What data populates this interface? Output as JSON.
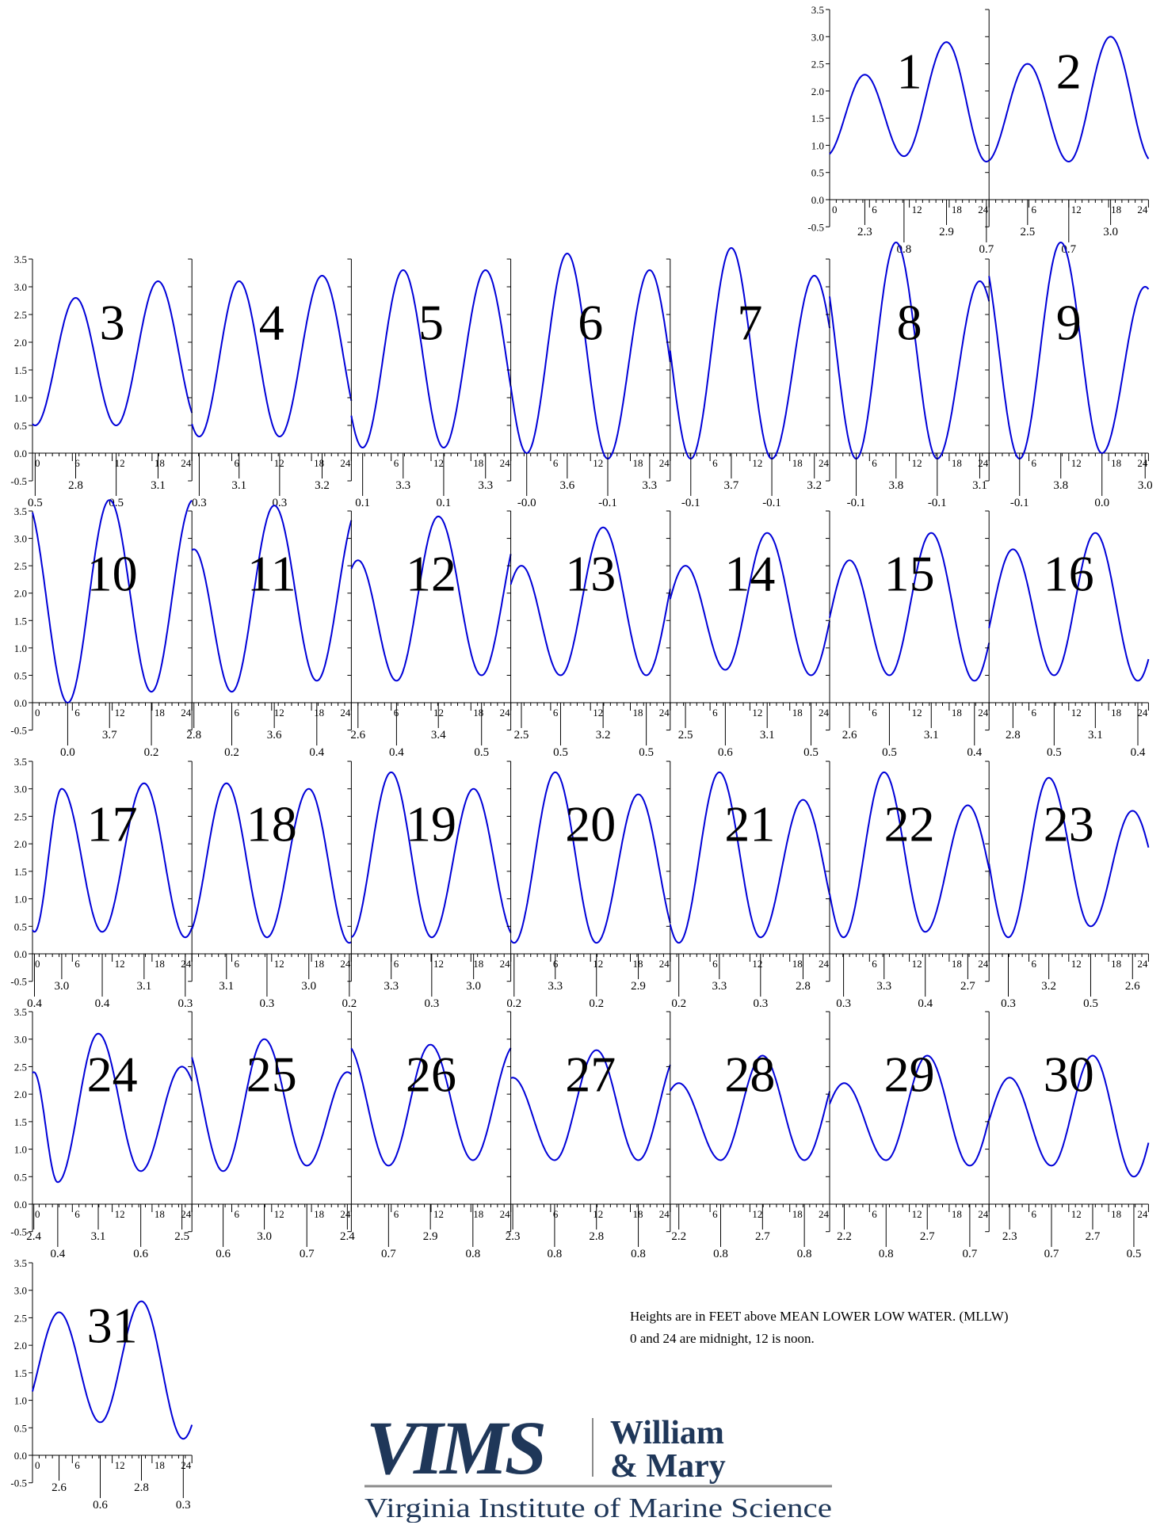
{
  "chart_data": {
    "type": "line",
    "ylim": [
      -0.5,
      3.5
    ],
    "yticks": [
      "-0.5",
      "0.0",
      "0.5",
      "1.0",
      "1.5",
      "2.0",
      "2.5",
      "3.0",
      "3.5"
    ],
    "xlim": [
      0,
      24
    ],
    "xticks": [
      "0",
      "6",
      "12",
      "18",
      "24"
    ],
    "days": [
      {
        "label": "1",
        "extremes": [
          {
            "t": 5.3,
            "v": "2.3"
          },
          {
            "t": 11.2,
            "v": "0.8"
          },
          {
            "t": 17.6,
            "v": "2.9"
          },
          {
            "t": 23.6,
            "v": "0.7"
          }
        ]
      },
      {
        "label": "2",
        "extremes": [
          {
            "t": 5.8,
            "v": "2.5"
          },
          {
            "t": 12.0,
            "v": "0.7"
          },
          {
            "t": 18.3,
            "v": "3.0"
          }
        ]
      },
      {
        "label": "3",
        "extremes": [
          {
            "t": 0.4,
            "v": "0.5"
          },
          {
            "t": 6.5,
            "v": "2.8"
          },
          {
            "t": 12.6,
            "v": "0.5"
          },
          {
            "t": 18.9,
            "v": "3.1"
          }
        ]
      },
      {
        "label": "4",
        "extremes": [
          {
            "t": 1.1,
            "v": "0.3"
          },
          {
            "t": 7.1,
            "v": "3.1"
          },
          {
            "t": 13.2,
            "v": "0.3"
          },
          {
            "t": 19.6,
            "v": "3.2"
          }
        ]
      },
      {
        "label": "5",
        "extremes": [
          {
            "t": 1.7,
            "v": "0.1"
          },
          {
            "t": 7.8,
            "v": "3.3"
          },
          {
            "t": 13.9,
            "v": "0.1"
          },
          {
            "t": 20.2,
            "v": "3.3"
          }
        ]
      },
      {
        "label": "6",
        "extremes": [
          {
            "t": 2.4,
            "v": "-0.0"
          },
          {
            "t": 8.5,
            "v": "3.6"
          },
          {
            "t": 14.6,
            "v": "-0.1"
          },
          {
            "t": 20.9,
            "v": "3.3"
          }
        ]
      },
      {
        "label": "7",
        "extremes": [
          {
            "t": 3.1,
            "v": "-0.1"
          },
          {
            "t": 9.2,
            "v": "3.7"
          },
          {
            "t": 15.3,
            "v": "-0.1"
          },
          {
            "t": 21.7,
            "v": "3.2"
          }
        ]
      },
      {
        "label": "8",
        "extremes": [
          {
            "t": 4.0,
            "v": "-0.1"
          },
          {
            "t": 10.0,
            "v": "3.8"
          },
          {
            "t": 16.2,
            "v": "-0.1"
          },
          {
            "t": 22.6,
            "v": "3.1"
          }
        ]
      },
      {
        "label": "9",
        "extremes": [
          {
            "t": 4.6,
            "v": "-0.1"
          },
          {
            "t": 10.8,
            "v": "3.8"
          },
          {
            "t": 17.0,
            "v": "0.0"
          },
          {
            "t": 23.5,
            "v": "3.0"
          }
        ]
      },
      {
        "label": "10",
        "extremes": [
          {
            "t": 5.3,
            "v": "0.0"
          },
          {
            "t": 11.6,
            "v": "3.7"
          },
          {
            "t": 17.9,
            "v": "0.2"
          }
        ]
      },
      {
        "label": "11",
        "extremes": [
          {
            "t": 0.3,
            "v": "2.8"
          },
          {
            "t": 6.0,
            "v": "0.2"
          },
          {
            "t": 12.4,
            "v": "3.6"
          },
          {
            "t": 18.8,
            "v": "0.4"
          }
        ]
      },
      {
        "label": "12",
        "extremes": [
          {
            "t": 1.0,
            "v": "2.6"
          },
          {
            "t": 6.8,
            "v": "0.4"
          },
          {
            "t": 13.1,
            "v": "3.4"
          },
          {
            "t": 19.6,
            "v": "0.5"
          }
        ]
      },
      {
        "label": "13",
        "extremes": [
          {
            "t": 1.6,
            "v": "2.5"
          },
          {
            "t": 7.5,
            "v": "0.5"
          },
          {
            "t": 13.9,
            "v": "3.2"
          },
          {
            "t": 20.4,
            "v": "0.5"
          }
        ]
      },
      {
        "label": "14",
        "extremes": [
          {
            "t": 2.3,
            "v": "2.5"
          },
          {
            "t": 8.3,
            "v": "0.6"
          },
          {
            "t": 14.6,
            "v": "3.1"
          },
          {
            "t": 21.2,
            "v": "0.5"
          }
        ]
      },
      {
        "label": "15",
        "extremes": [
          {
            "t": 3.0,
            "v": "2.6"
          },
          {
            "t": 9.0,
            "v": "0.5"
          },
          {
            "t": 15.3,
            "v": "3.1"
          },
          {
            "t": 21.8,
            "v": "0.4"
          }
        ]
      },
      {
        "label": "16",
        "extremes": [
          {
            "t": 3.6,
            "v": "2.8"
          },
          {
            "t": 9.8,
            "v": "0.5"
          },
          {
            "t": 16.0,
            "v": "3.1"
          },
          {
            "t": 22.4,
            "v": "0.4"
          }
        ]
      },
      {
        "label": "17",
        "extremes": [
          {
            "t": 0.3,
            "v": "0.4"
          },
          {
            "t": 4.4,
            "v": "3.0"
          },
          {
            "t": 10.5,
            "v": "0.4"
          },
          {
            "t": 16.8,
            "v": "3.1"
          },
          {
            "t": 23.0,
            "v": "0.3"
          }
        ]
      },
      {
        "label": "18",
        "extremes": [
          {
            "t": 5.2,
            "v": "3.1"
          },
          {
            "t": 11.3,
            "v": "0.3"
          },
          {
            "t": 17.6,
            "v": "3.0"
          },
          {
            "t": 23.7,
            "v": "0.2"
          }
        ]
      },
      {
        "label": "19",
        "extremes": [
          {
            "t": 6.0,
            "v": "3.3"
          },
          {
            "t": 12.1,
            "v": "0.3"
          },
          {
            "t": 18.4,
            "v": "3.0"
          }
        ]
      },
      {
        "label": "20",
        "extremes": [
          {
            "t": 0.5,
            "v": "0.2"
          },
          {
            "t": 6.7,
            "v": "3.3"
          },
          {
            "t": 12.9,
            "v": "0.2"
          },
          {
            "t": 19.2,
            "v": "2.9"
          }
        ]
      },
      {
        "label": "21",
        "extremes": [
          {
            "t": 1.3,
            "v": "0.2"
          },
          {
            "t": 7.4,
            "v": "3.3"
          },
          {
            "t": 13.6,
            "v": "0.3"
          },
          {
            "t": 20.0,
            "v": "2.8"
          }
        ]
      },
      {
        "label": "22",
        "extremes": [
          {
            "t": 2.1,
            "v": "0.3"
          },
          {
            "t": 8.2,
            "v": "3.3"
          },
          {
            "t": 14.4,
            "v": "0.4"
          },
          {
            "t": 20.8,
            "v": "2.7"
          }
        ]
      },
      {
        "label": "23",
        "extremes": [
          {
            "t": 2.9,
            "v": "0.3"
          },
          {
            "t": 9.0,
            "v": "3.2"
          },
          {
            "t": 15.3,
            "v": "0.5"
          },
          {
            "t": 21.6,
            "v": "2.6"
          }
        ]
      },
      {
        "label": "24",
        "extremes": [
          {
            "t": 0.2,
            "v": "2.4"
          },
          {
            "t": 3.8,
            "v": "0.4"
          },
          {
            "t": 9.9,
            "v": "3.1"
          },
          {
            "t": 16.3,
            "v": "0.6"
          },
          {
            "t": 22.5,
            "v": "2.5"
          }
        ]
      },
      {
        "label": "25",
        "extremes": [
          {
            "t": 4.7,
            "v": "0.6"
          },
          {
            "t": 10.9,
            "v": "3.0"
          },
          {
            "t": 17.3,
            "v": "0.7"
          },
          {
            "t": 23.4,
            "v": "2.4"
          }
        ]
      },
      {
        "label": "26",
        "extremes": [
          {
            "t": 5.6,
            "v": "0.7"
          },
          {
            "t": 11.9,
            "v": "2.9"
          },
          {
            "t": 18.3,
            "v": "0.8"
          }
        ]
      },
      {
        "label": "27",
        "extremes": [
          {
            "t": 0.3,
            "v": "2.3"
          },
          {
            "t": 6.6,
            "v": "0.8"
          },
          {
            "t": 12.9,
            "v": "2.8"
          },
          {
            "t": 19.2,
            "v": "0.8"
          }
        ]
      },
      {
        "label": "28",
        "extremes": [
          {
            "t": 1.3,
            "v": "2.2"
          },
          {
            "t": 7.6,
            "v": "0.8"
          },
          {
            "t": 13.9,
            "v": "2.7"
          },
          {
            "t": 20.2,
            "v": "0.8"
          }
        ]
      },
      {
        "label": "29",
        "extremes": [
          {
            "t": 2.2,
            "v": "2.2"
          },
          {
            "t": 8.5,
            "v": "0.8"
          },
          {
            "t": 14.7,
            "v": "2.7"
          },
          {
            "t": 21.1,
            "v": "0.7"
          }
        ]
      },
      {
        "label": "30",
        "extremes": [
          {
            "t": 3.1,
            "v": "2.3"
          },
          {
            "t": 9.4,
            "v": "0.7"
          },
          {
            "t": 15.6,
            "v": "2.7"
          },
          {
            "t": 21.8,
            "v": "0.5"
          }
        ]
      },
      {
        "label": "31",
        "extremes": [
          {
            "t": 4.0,
            "v": "2.6"
          },
          {
            "t": 10.2,
            "v": "0.6"
          },
          {
            "t": 16.4,
            "v": "2.8"
          },
          {
            "t": 22.7,
            "v": "0.3"
          }
        ]
      }
    ]
  },
  "notes": {
    "line1": "Heights are in FEET above MEAN LOWER LOW WATER. (MLLW)",
    "line2": "0 and 24 are midnight, 12 is noon."
  },
  "logo": {
    "vims": "VIMS",
    "william": "William",
    "mary": "& Mary",
    "institute": "Virginia Institute of Marine Science"
  },
  "colors": {
    "curve": "#0000d8",
    "logo": "#1f3759",
    "logo_bar": "#8a8a8a"
  }
}
